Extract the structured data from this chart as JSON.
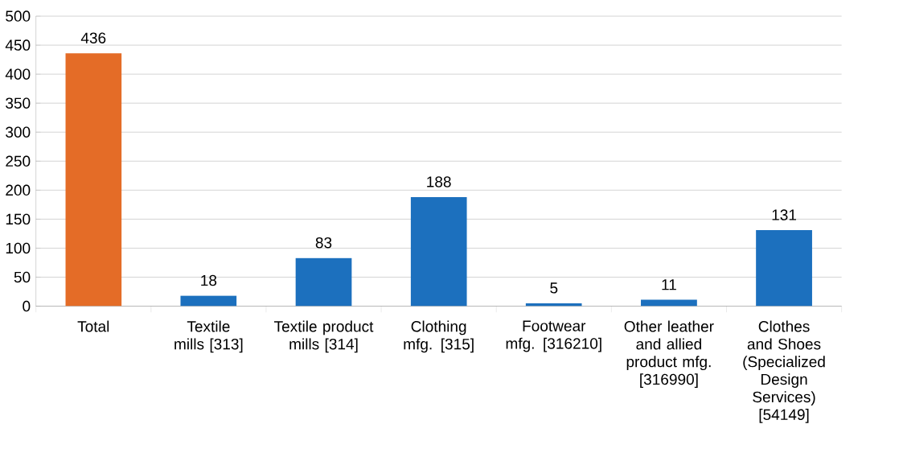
{
  "chart_data": {
    "type": "bar",
    "categories": [
      "Total",
      "Textile mills [313]",
      "Textile product mills [314]",
      "Clothing mfg. [315]",
      "Footwear mfg. [316210]",
      "Other leather and allied product mfg. [316990]",
      "Clothes and Shoes (Specialized Design Services) [54149]"
    ],
    "values": [
      436,
      18,
      83,
      188,
      5,
      11,
      131
    ],
    "colors": [
      "#e46c27",
      "#1c70be",
      "#1c70be",
      "#1c70be",
      "#1c70be",
      "#1c70be",
      "#1c70be"
    ],
    "ylim": [
      0,
      500
    ],
    "yticks": [
      0,
      50,
      100,
      150,
      200,
      250,
      300,
      350,
      400,
      450,
      500
    ],
    "grid": "y",
    "data_labels": true
  }
}
